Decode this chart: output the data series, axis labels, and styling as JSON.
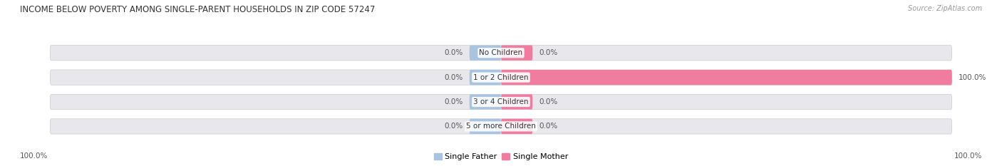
{
  "title": "INCOME BELOW POVERTY AMONG SINGLE-PARENT HOUSEHOLDS IN ZIP CODE 57247",
  "source": "Source: ZipAtlas.com",
  "categories": [
    "No Children",
    "1 or 2 Children",
    "3 or 4 Children",
    "5 or more Children"
  ],
  "single_father": [
    0.0,
    0.0,
    0.0,
    0.0
  ],
  "single_mother": [
    0.0,
    100.0,
    0.0,
    0.0
  ],
  "father_color": "#a8c4e0",
  "mother_color": "#f07ca0",
  "bar_bg_color": "#e8e8ec",
  "title_color": "#333333",
  "source_color": "#999999",
  "value_color": "#555555",
  "axis_label_left": "100.0%",
  "axis_label_right": "100.0%",
  "fig_width": 14.06,
  "fig_height": 2.33
}
